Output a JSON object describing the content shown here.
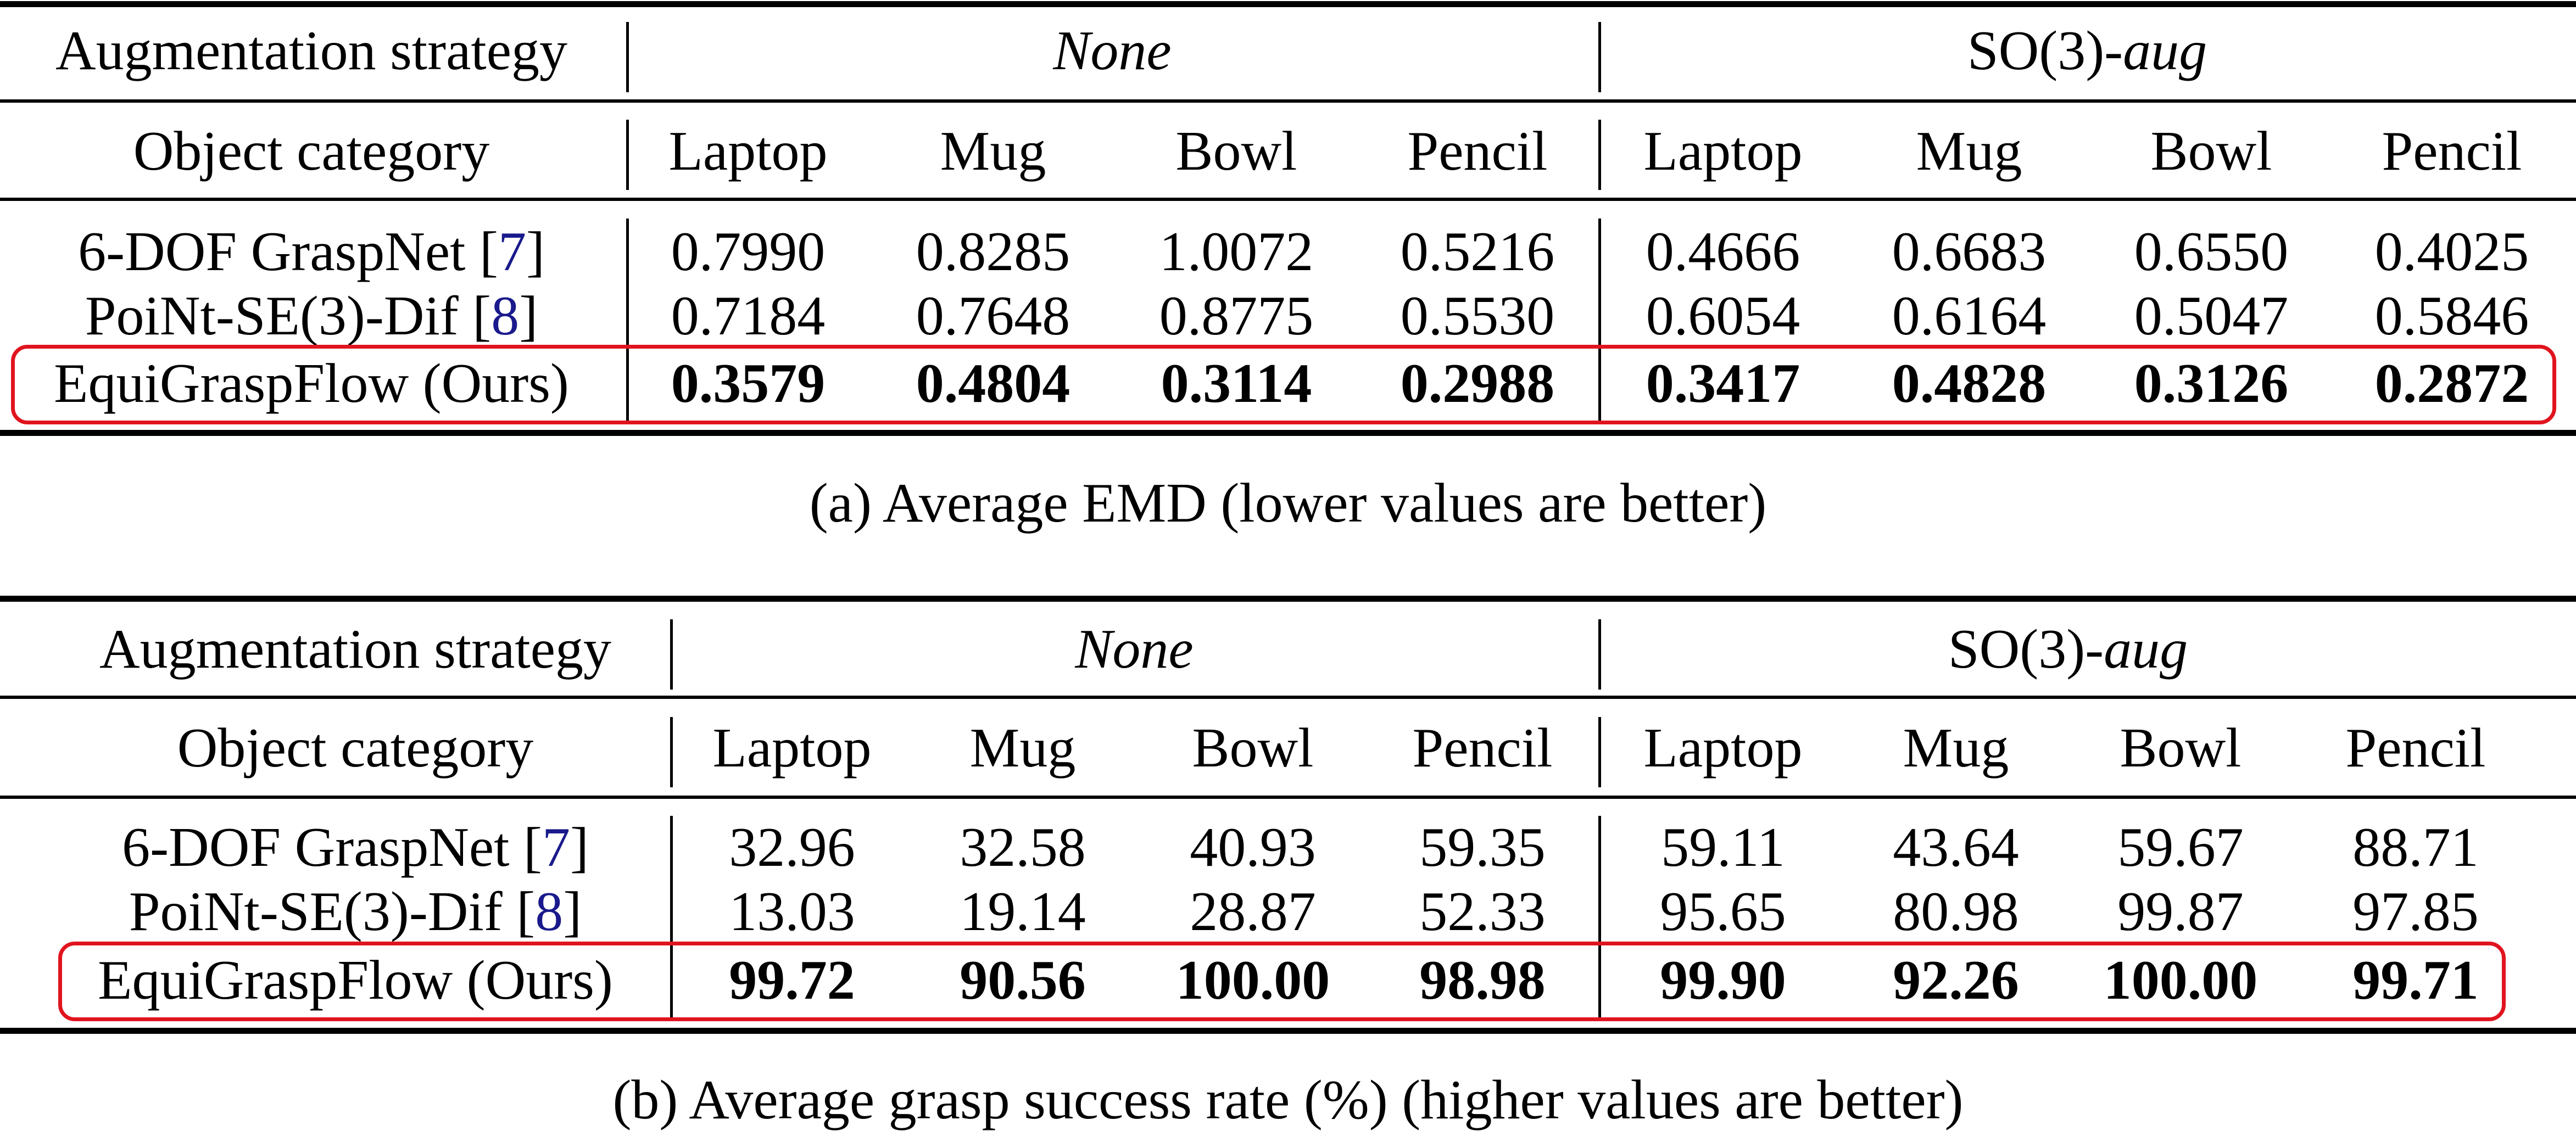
{
  "table_a": {
    "header1": {
      "label": "Augmentation strategy",
      "group_none": "None",
      "group_so3_prefix": "SO(3)-",
      "group_so3_suffix": "aug"
    },
    "header2": {
      "label": "Object category",
      "categories": [
        "Laptop",
        "Mug",
        "Bowl",
        "Pencil",
        "Laptop",
        "Mug",
        "Bowl",
        "Pencil"
      ]
    },
    "rows": [
      {
        "method": "6-DOF GraspNet ",
        "ref_open": "[",
        "ref": "7",
        "ref_close": "]",
        "values": [
          "0.7990",
          "0.8285",
          "1.0072",
          "0.5216",
          "0.4666",
          "0.6683",
          "0.6550",
          "0.4025"
        ]
      },
      {
        "method": "PoiNt-SE(3)-Dif ",
        "ref_open": "[",
        "ref": "8",
        "ref_close": "]",
        "values": [
          "0.7184",
          "0.7648",
          "0.8775",
          "0.5530",
          "0.6054",
          "0.6164",
          "0.5047",
          "0.5846"
        ]
      },
      {
        "method": "EquiGraspFlow (Ours)",
        "values": [
          "0.3579",
          "0.4804",
          "0.3114",
          "0.2988",
          "0.3417",
          "0.4828",
          "0.3126",
          "0.2872"
        ]
      }
    ],
    "caption": "(a) Average EMD (lower values are better)"
  },
  "table_b": {
    "header1": {
      "label": "Augmentation strategy",
      "group_none": "None",
      "group_so3_prefix": "SO(3)-",
      "group_so3_suffix": "aug"
    },
    "header2": {
      "label": "Object category",
      "categories": [
        "Laptop",
        "Mug",
        "Bowl",
        "Pencil",
        "Laptop",
        "Mug",
        "Bowl",
        "Pencil"
      ]
    },
    "rows": [
      {
        "method": "6-DOF GraspNet ",
        "ref_open": "[",
        "ref": "7",
        "ref_close": "]",
        "values": [
          "32.96",
          "32.58",
          "40.93",
          "59.35",
          "59.11",
          "43.64",
          "59.67",
          "88.71"
        ]
      },
      {
        "method": "PoiNt-SE(3)-Dif ",
        "ref_open": "[",
        "ref": "8",
        "ref_close": "]",
        "values": [
          "13.03",
          "19.14",
          "28.87",
          "52.33",
          "95.65",
          "80.98",
          "99.87",
          "97.85"
        ]
      },
      {
        "method": "EquiGraspFlow (Ours)",
        "values": [
          "99.72",
          "90.56",
          "100.00",
          "98.98",
          "99.90",
          "92.26",
          "100.00",
          "99.71"
        ]
      }
    ],
    "caption": "(b) Average grasp success rate (%) (higher values are better)"
  },
  "colors": {
    "highlight": "#e0141e",
    "reference_link": "#1a1a8c"
  }
}
